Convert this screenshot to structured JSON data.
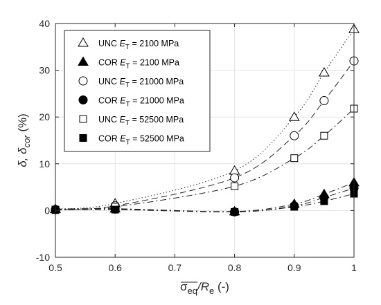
{
  "chart_data": {
    "type": "scatter",
    "xlabel": {
      "base": "σ",
      "main": "eq",
      "mid": "/R",
      "sub": "e",
      "tail": " (-)"
    },
    "ylabel": {
      "base": "δ, δ",
      "sub": "cor",
      "tail": " (%)"
    },
    "xlim": [
      0.5,
      1.0
    ],
    "ylim": [
      -10,
      40
    ],
    "xticks": [
      "0.5",
      "0.6",
      "0.7",
      "0.8",
      "0.9",
      "1"
    ],
    "yticks": [
      "-10",
      "0",
      "10",
      "20",
      "30",
      "40"
    ],
    "grid": true,
    "legend_position": "top-left",
    "series": [
      {
        "name": "UNC E_T = 2100 MPa",
        "legend": {
          "pre": "UNC ",
          "e": "E",
          "sub": "T",
          "post": " = 2100 MPa"
        },
        "marker": "triangle",
        "filled": false,
        "line": "dotted",
        "points": [
          [
            0.5,
            0.3
          ],
          [
            0.6,
            1.5
          ],
          [
            0.8,
            8.5
          ],
          [
            0.9,
            20.0
          ],
          [
            0.95,
            29.5
          ],
          [
            1.0,
            38.8
          ]
        ]
      },
      {
        "name": "COR E_T = 2100 MPa",
        "legend": {
          "pre": "COR ",
          "e": "E",
          "sub": "T",
          "post": " = 2100 MPa"
        },
        "marker": "triangle",
        "filled": true,
        "line": "dashdot",
        "points": [
          [
            0.5,
            0.3
          ],
          [
            0.6,
            0.4
          ],
          [
            0.8,
            -0.2
          ],
          [
            0.9,
            1.4
          ],
          [
            0.95,
            3.5
          ],
          [
            1.0,
            6.0
          ]
        ]
      },
      {
        "name": "UNC E_T = 21000 MPa",
        "legend": {
          "pre": "UNC ",
          "e": "E",
          "sub": "T",
          "post": " = 21000 MPa"
        },
        "marker": "circle",
        "filled": false,
        "line": "dashed",
        "points": [
          [
            0.5,
            0.2
          ],
          [
            0.6,
            1.0
          ],
          [
            0.8,
            7.0
          ],
          [
            0.9,
            16.0
          ],
          [
            0.95,
            23.5
          ],
          [
            1.0,
            32.0
          ]
        ]
      },
      {
        "name": "COR E_T = 21000 MPa",
        "legend": {
          "pre": "COR ",
          "e": "E",
          "sub": "T",
          "post": " = 21000 MPa"
        },
        "marker": "circle",
        "filled": true,
        "line": "dashdot",
        "points": [
          [
            0.5,
            0.2
          ],
          [
            0.6,
            0.3
          ],
          [
            0.8,
            -0.3
          ],
          [
            0.9,
            1.0
          ],
          [
            0.95,
            2.8
          ],
          [
            1.0,
            4.8
          ]
        ]
      },
      {
        "name": "UNC E_T = 52500 MPa",
        "legend": {
          "pre": "UNC ",
          "e": "E",
          "sub": "T",
          "post": " = 52500 MPa"
        },
        "marker": "square",
        "filled": false,
        "line": "dashdot",
        "points": [
          [
            0.5,
            0.2
          ],
          [
            0.6,
            0.8
          ],
          [
            0.8,
            5.2
          ],
          [
            0.9,
            11.2
          ],
          [
            0.95,
            16.0
          ],
          [
            1.0,
            21.8
          ]
        ]
      },
      {
        "name": "COR E_T = 52500 MPa",
        "legend": {
          "pre": "COR ",
          "e": "E",
          "sub": "T",
          "post": " = 52500 MPa"
        },
        "marker": "square",
        "filled": true,
        "line": "dashdot",
        "points": [
          [
            0.5,
            0.1
          ],
          [
            0.6,
            0.2
          ],
          [
            0.8,
            -0.3
          ],
          [
            0.9,
            0.8
          ],
          [
            0.95,
            2.0
          ],
          [
            1.0,
            3.6
          ]
        ]
      }
    ]
  }
}
